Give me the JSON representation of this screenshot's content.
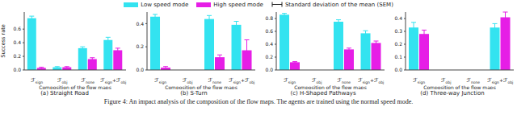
{
  "error_bar_label": "Standard deviation of the mean (SEM)",
  "caption": "Figure 4: An impact analysis of the composition of the flow maps. The agents are trained using the normal speed mode.",
  "chart_data": [
    {
      "type": "bar",
      "title": "(a) Straight Road",
      "x_label": "Composition of the flow maps",
      "y_label": "Success rate",
      "categories": [
        "ℱsign",
        "ℱobj",
        "ℱnone",
        "ℱsign+ℱobj"
      ],
      "series": [
        {
          "name": "Low speed mode",
          "color": "#33e3f0",
          "values": [
            0.76,
            0.04,
            0.32,
            0.44
          ],
          "errors": [
            0.03,
            0.01,
            0.02,
            0.04
          ]
        },
        {
          "name": "High speed mode",
          "color": "#e61ee6",
          "values": [
            0.03,
            0.04,
            0.16,
            0.29
          ],
          "errors": [
            0.01,
            0.01,
            0.02,
            0.03
          ]
        }
      ],
      "ylim": [
        0,
        0.85
      ],
      "yticks": [
        {
          "value": 0,
          "label": "0.0"
        },
        0.2,
        0.4,
        0.6
      ],
      "grid": false
    },
    {
      "type": "bar",
      "title": "(b) S-Turn",
      "x_label": "Composition of the flow maps",
      "categories": [
        "ℱsign",
        "ℱobj",
        "ℱnone",
        "ℱsign+ℱobj"
      ],
      "series": [
        {
          "name": "Low speed mode",
          "color": "#33e3f0",
          "values": [
            0.46,
            0,
            0.44,
            0.39
          ],
          "errors": [
            0.02,
            0,
            0.03,
            0.03
          ]
        },
        {
          "name": "High speed mode",
          "color": "#e61ee6",
          "values": [
            0.02,
            0,
            0.11,
            0.17
          ],
          "errors": [
            0.01,
            0,
            0.02,
            0.09
          ]
        }
      ],
      "ylim": [
        0,
        0.5
      ],
      "yticks": [
        {
          "value": 0,
          "label": "0.0"
        },
        0.2,
        0.4
      ],
      "grid": false
    },
    {
      "type": "bar",
      "title": "(c) H-Shaped Pathways",
      "x_label": "Composition of the flow maps",
      "categories": [
        "ℱsign",
        "ℱobj",
        "ℱnone",
        "ℱsign+ℱobj"
      ],
      "series": [
        {
          "name": "Low speed mode",
          "color": "#33e3f0",
          "values": [
            0.86,
            0,
            0.75,
            0.57
          ],
          "errors": [
            0.02,
            0,
            0.03,
            0.04
          ]
        },
        {
          "name": "High speed mode",
          "color": "#e61ee6",
          "values": [
            0.12,
            0,
            0.32,
            0.42
          ],
          "errors": [
            0.01,
            0,
            0.02,
            0.03
          ]
        }
      ],
      "ylim": [
        0,
        0.9
      ],
      "yticks": [
        {
          "value": 0,
          "label": "0.0"
        },
        0.2,
        0.4,
        0.6,
        0.8
      ],
      "grid": false
    },
    {
      "type": "bar",
      "title": "(d) Three-way Junction",
      "x_label": "Composition of the flow maps",
      "categories": [
        "ℱsign",
        "ℱobj",
        "ℱnone",
        "ℱsign+ℱobj"
      ],
      "series": [
        {
          "name": "Low speed mode",
          "color": "#33e3f0",
          "values": [
            0.33,
            0,
            0,
            0.33
          ],
          "errors": [
            0.04,
            0,
            0,
            0.03
          ]
        },
        {
          "name": "High speed mode",
          "color": "#e61ee6",
          "values": [
            0.28,
            0,
            0,
            0.41
          ],
          "errors": [
            0.03,
            0,
            0,
            0.04
          ]
        }
      ],
      "ylim": [
        0,
        0.45
      ],
      "yticks": [
        {
          "value": 0,
          "label": "0.0"
        },
        0.1,
        0.2,
        0.3,
        0.4
      ],
      "grid": false
    }
  ]
}
